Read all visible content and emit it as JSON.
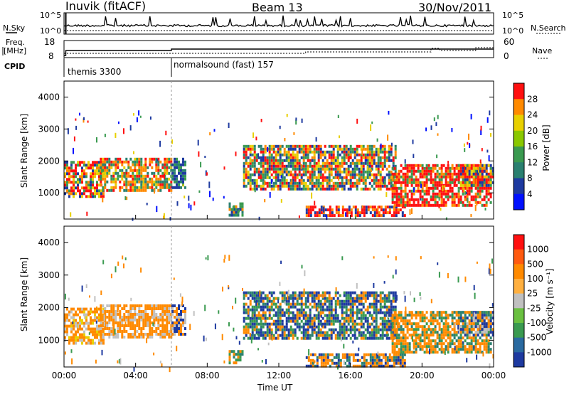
{
  "header": {
    "station": "Inuvik (fitACF)",
    "beam": "Beam 13",
    "date": "30/Nov/2011"
  },
  "side_labels": {
    "nsky": "N.Sky",
    "freq": "Freq.",
    "freq_unit": "[MHz]",
    "cpid": "CPID",
    "nsearch": "N.Search",
    "nave": "Nave"
  },
  "small_panels": {
    "nsky_ticks": [
      "10^5",
      "10^0"
    ],
    "nsearch_ticks": [
      "10^5",
      "10^0"
    ],
    "freq_ticks": [
      "18",
      "8"
    ],
    "nave_ticks": [
      "60",
      "0"
    ]
  },
  "cpid": [
    {
      "name": "themis 3300",
      "start_hour": 0,
      "end_hour": 6
    },
    {
      "name": "normalsound (fast) 157",
      "start_hour": 6,
      "end_hour": 24
    }
  ],
  "colors": {
    "red": "#ff1010",
    "orange": "#ff8a00",
    "yellow": "#e8d000",
    "lime": "#8ac800",
    "green": "#3a9a50",
    "teal": "#2a8070",
    "navy": "#1e3aa0",
    "blue": "#0010ff",
    "gray": "#c0c0c0"
  },
  "chart_data": [
    {
      "type": "heatmap",
      "name": "power",
      "ylabel": "Slant Range [km]",
      "xlabel": "",
      "x_ticks": [],
      "ylim": [
        180,
        4500
      ],
      "y_ticks": [
        "1000",
        "2000",
        "3000",
        "4000"
      ],
      "colorbar_label": "Power [dB]",
      "colorbar_ticks": [
        "4",
        "8",
        "12",
        "16",
        "20",
        "24",
        "28"
      ],
      "colorbar_colors": [
        "#0010ff",
        "#1e3aa0",
        "#2a8070",
        "#3a9a50",
        "#8ac800",
        "#e8d000",
        "#ff8a00",
        "#ff1010"
      ],
      "regions": [
        {
          "t0": 0.0,
          "t1": 2.2,
          "r0": 900,
          "r1": 2000,
          "mix": [
            "red",
            "red",
            "orange",
            "yellow",
            "green",
            "navy"
          ]
        },
        {
          "t0": 2.0,
          "t1": 6.0,
          "r0": 1100,
          "r1": 2100,
          "mix": [
            "red",
            "orange",
            "orange",
            "yellow",
            "green",
            "teal"
          ]
        },
        {
          "t0": 6.0,
          "t1": 6.8,
          "r0": 1200,
          "r1": 2100,
          "mix": [
            "navy",
            "teal",
            "green",
            "navy"
          ]
        },
        {
          "t0": 9.2,
          "t1": 10.0,
          "r0": 300,
          "r1": 700,
          "mix": [
            "green",
            "teal",
            "orange",
            "navy"
          ]
        },
        {
          "t0": 10.0,
          "t1": 18.5,
          "r0": 1100,
          "r1": 2500,
          "mix": [
            "red",
            "orange",
            "yellow",
            "green",
            "teal",
            "navy"
          ]
        },
        {
          "t0": 13.5,
          "t1": 19.0,
          "r0": 250,
          "r1": 600,
          "mix": [
            "red",
            "red",
            "orange",
            "navy"
          ]
        },
        {
          "t0": 18.3,
          "t1": 23.8,
          "r0": 600,
          "r1": 1900,
          "mix": [
            "red",
            "red",
            "red",
            "orange",
            "green"
          ]
        },
        {
          "t0": 22.0,
          "t1": 24.0,
          "r0": 1200,
          "r1": 1900,
          "mix": [
            "red",
            "orange",
            "yellow",
            "green",
            "navy"
          ]
        }
      ]
    },
    {
      "type": "heatmap",
      "name": "velocity",
      "ylabel": "Slant Range [km]",
      "xlabel": "Time UT",
      "ylim": [
        180,
        4500
      ],
      "y_ticks": [
        "1000",
        "2000",
        "3000",
        "4000"
      ],
      "x_ticks": [
        "00:00",
        "04:00",
        "08:00",
        "12:00",
        "16:00",
        "20:00",
        "00:00"
      ],
      "colorbar_label": "Velocity [m s⁻¹]",
      "colorbar_ticks": [
        "1000",
        "500",
        "100",
        "25",
        "-25",
        "-100",
        "-500",
        "-1000"
      ],
      "colorbar_colors": [
        "#1e3aa0",
        "#2a6aa0",
        "#3a9a50",
        "#6ac040",
        "#c0c0c0",
        "#ffb040",
        "#ff8a00",
        "#ff5a10",
        "#ff1010"
      ],
      "regions": [
        {
          "t0": 0.0,
          "t1": 2.2,
          "r0": 900,
          "r1": 2000,
          "mix": [
            "orange",
            "orange",
            "orange",
            "gray",
            "yellow"
          ]
        },
        {
          "t0": 2.0,
          "t1": 6.0,
          "r0": 1100,
          "r1": 2100,
          "mix": [
            "orange",
            "orange",
            "orange",
            "gray"
          ]
        },
        {
          "t0": 6.0,
          "t1": 6.8,
          "r0": 1200,
          "r1": 2100,
          "mix": [
            "orange",
            "gray",
            "navy"
          ]
        },
        {
          "t0": 9.2,
          "t1": 10.0,
          "r0": 300,
          "r1": 700,
          "mix": [
            "green",
            "teal",
            "orange"
          ]
        },
        {
          "t0": 10.0,
          "t1": 18.5,
          "r0": 1100,
          "r1": 2500,
          "mix": [
            "navy",
            "navy",
            "teal",
            "green",
            "orange"
          ]
        },
        {
          "t0": 13.5,
          "t1": 19.0,
          "r0": 250,
          "r1": 600,
          "mix": [
            "orange",
            "orange",
            "teal",
            "navy"
          ]
        },
        {
          "t0": 18.3,
          "t1": 23.8,
          "r0": 600,
          "r1": 1900,
          "mix": [
            "orange",
            "orange",
            "orange",
            "teal",
            "green"
          ]
        },
        {
          "t0": 22.0,
          "t1": 24.0,
          "r0": 1200,
          "r1": 1900,
          "mix": [
            "orange",
            "navy",
            "teal",
            "gray"
          ]
        }
      ]
    }
  ]
}
